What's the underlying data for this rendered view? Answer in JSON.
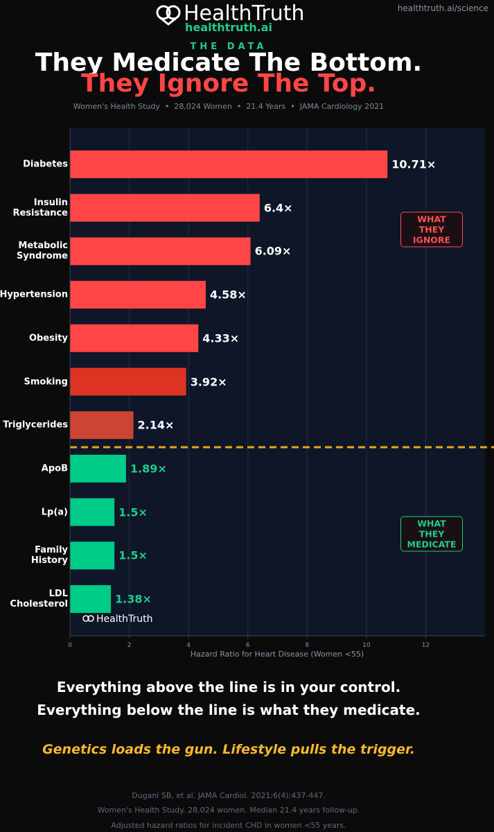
{
  "header": {
    "brand": "HealthTruth",
    "site": "healthtruth.ai",
    "link": "healthtruth.ai/science",
    "kicker": "THE DATA",
    "title_line1": "They Medicate The Bottom.",
    "title_line2": "They Ignore The Top.",
    "subtitle": "Women's Health Study  •  28,024 Women  •  21.4 Years  •  JAMA Cardiology 2021"
  },
  "chart_data": {
    "type": "bar",
    "orientation": "horizontal",
    "categories": [
      "Diabetes",
      "Insulin\nResistance",
      "Metabolic\nSyndrome",
      "Hypertension",
      "Obesity",
      "Smoking",
      "Triglycerides",
      "ApoB",
      "Lp(a)",
      "Family\nHistory",
      "LDL\nCholesterol"
    ],
    "values": [
      10.71,
      6.4,
      6.09,
      4.58,
      4.33,
      3.92,
      2.14,
      1.89,
      1.5,
      1.5,
      1.38
    ],
    "value_labels": [
      "10.71×",
      "6.4×",
      "6.09×",
      "4.58×",
      "4.33×",
      "3.92×",
      "2.14×",
      "1.89×",
      "1.5×",
      "1.5×",
      "1.38×"
    ],
    "colors": [
      "#ff4545",
      "#ff4545",
      "#ff4545",
      "#ff4545",
      "#ff4545",
      "#dd3322",
      "#cc4433",
      "#00cc88",
      "#00cc88",
      "#00cc88",
      "#00cc88"
    ],
    "label_colors": [
      "#ffffff",
      "#ffffff",
      "#ffffff",
      "#ffffff",
      "#ffffff",
      "#ffffff",
      "#ffffff",
      "#22cc88",
      "#22cc88",
      "#22cc88",
      "#22cc88"
    ],
    "xlim": [
      0,
      14
    ],
    "xticks": [
      0,
      2,
      4,
      6,
      8,
      10,
      12
    ],
    "grid": true,
    "xlabel": "Hazard Ratio for Heart Disease (Women <55)",
    "annotations": [
      {
        "text": "WHAT THEY\nIGNORE",
        "color": "#ff5050"
      },
      {
        "text": "WHAT THEY\nMEDICATE",
        "color": "#22cc88"
      }
    ],
    "watermark": "HealthTruth"
  },
  "footer": {
    "line1": "Everything above the line is in your control.",
    "line2": "Everything below the line is what they medicate.",
    "tagline": "Genetics loads the gun. Lifestyle pulls the trigger.",
    "notes": [
      "Dugani SB, et al. JAMA Cardiol. 2021;6(4):437-447.",
      "Women's Health Study. 28,024 women. Median 21.4 years follow-up.",
      "Adjusted hazard ratios for incident CHD in women <55 years."
    ]
  }
}
